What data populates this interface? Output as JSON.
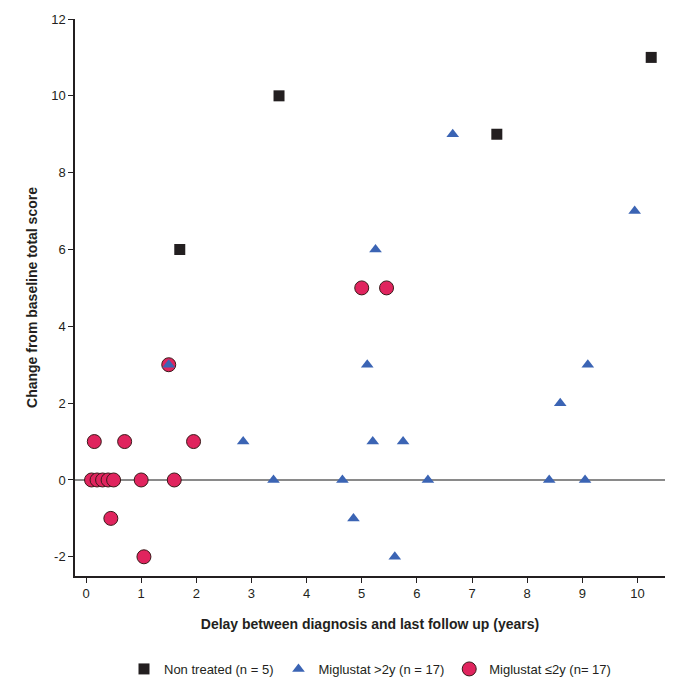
{
  "chart_data": {
    "type": "scatter",
    "x_label": "Delay between diagnosis and last follow up (years)",
    "y_label": "Change from baseline total score",
    "xlim": [
      -0.2,
      10.5
    ],
    "xticks": [
      0,
      1,
      2,
      3,
      4,
      5,
      6,
      7,
      8,
      9,
      10
    ],
    "ylim": [
      -2.5,
      12
    ],
    "yticks": [
      -2,
      0,
      2,
      4,
      6,
      8,
      10,
      12
    ],
    "grid": false,
    "legend": "bottom",
    "series": [
      {
        "name": "Non treated (n = 5)",
        "color": "#231f20",
        "marker": "square",
        "x": [
          1.7,
          3.5,
          7.45,
          10.25
        ],
        "values": [
          6,
          10,
          9,
          11
        ]
      },
      {
        "name": "Miglustat ≤2y (n= 17)",
        "color": "#e0245e",
        "marker": "circle",
        "x": [
          0.1,
          0.15,
          0.2,
          0.3,
          0.4,
          0.45,
          0.5,
          0.7,
          1.0,
          1.05,
          1.5,
          1.6,
          1.95,
          5.0,
          5.45
        ],
        "values": [
          0,
          1,
          0,
          0,
          0,
          -1,
          0,
          1,
          0,
          -2,
          3,
          0,
          1,
          5,
          5
        ]
      },
      {
        "name": "Miglustat >2y (n = 17)",
        "color": "#3b64b4",
        "marker": "triangle-up",
        "x": [
          1.5,
          2.85,
          3.4,
          4.65,
          4.85,
          5.1,
          5.25,
          5.2,
          5.6,
          5.75,
          6.2,
          6.65,
          8.4,
          8.6,
          9.05,
          9.1,
          9.95
        ],
        "values": [
          3,
          1,
          0,
          0,
          -1,
          3,
          6,
          1,
          -2,
          1,
          0,
          9,
          0,
          2,
          0,
          3,
          7
        ]
      }
    ]
  }
}
